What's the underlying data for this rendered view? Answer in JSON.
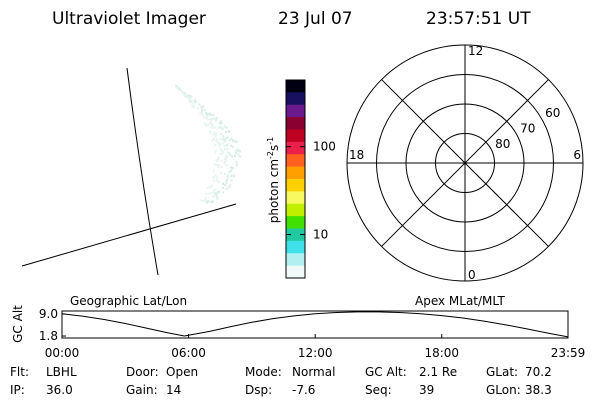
{
  "header": {
    "instrument": "Ultraviolet Imager",
    "date": "23 Jul 07",
    "time": "23:57:51 UT"
  },
  "colorbar": {
    "label": {
      "base": "photon cm",
      "exp1": "-2",
      "mid": "s",
      "exp2": "-1"
    },
    "log_scale": true,
    "lim": [
      3.2,
      575
    ],
    "ticks": [
      10,
      100
    ],
    "colors": [
      "#000010",
      "#1a1060",
      "#6a1a8a",
      "#8a0030",
      "#c00020",
      "#e8204a",
      "#ff6020",
      "#ffa000",
      "#ffd000",
      "#f8f860",
      "#c0f000",
      "#40e000",
      "#20c8a0",
      "#40e0e8",
      "#b0f0f0",
      "#f0f8f8"
    ]
  },
  "polar": {
    "lat_lim": [
      50,
      90
    ],
    "rings": [
      80,
      70,
      60
    ],
    "mlt_labels": [
      12,
      18,
      6,
      0
    ]
  },
  "chart_data": {
    "type": "line",
    "ylabel": "GC Alt",
    "left_label": "Geographic Lat/Lon",
    "right_label": "Apex MLat/MLT",
    "x": [
      0,
      1,
      2,
      3,
      4,
      5,
      5.8,
      7,
      8,
      9,
      10,
      11,
      12,
      13,
      14,
      15,
      16,
      17,
      18,
      19,
      20,
      21,
      22,
      23,
      23.983
    ],
    "values": [
      9.1,
      8.3,
      7.2,
      5.9,
      4.4,
      2.9,
      1.8,
      3.3,
      4.9,
      6.3,
      7.5,
      8.4,
      9.1,
      9.5,
      9.7,
      9.7,
      9.5,
      9.1,
      8.5,
      7.7,
      6.7,
      5.5,
      4.2,
      2.8,
      1.5
    ],
    "xlim": [
      0,
      23.983
    ],
    "ylim": [
      1.15,
      10.0
    ],
    "xticks": [
      {
        "value": 0,
        "label": "00:00"
      },
      {
        "value": 6,
        "label": "06:00"
      },
      {
        "value": 12,
        "label": "12:00"
      },
      {
        "value": 18,
        "label": "18:00"
      },
      {
        "value": 23.983,
        "label": "23:59"
      }
    ],
    "yticks": [
      1.8,
      {
        "value": 9,
        "label": "9.0"
      }
    ]
  },
  "footer": [
    [
      [
        "Flt:",
        "LBHL"
      ],
      [
        "Door:",
        "Open"
      ],
      [
        "Mode:",
        "Normal"
      ],
      [
        "GC Alt:",
        "2.1 Re"
      ],
      [
        "GLat:",
        "70.2"
      ]
    ],
    [
      [
        "IP:",
        "36.0"
      ],
      [
        "Gain:",
        "14"
      ],
      [
        "Dsp:",
        "-7.6"
      ],
      [
        "Seq:",
        "39"
      ],
      [
        "GLon:",
        "38.3"
      ]
    ]
  ]
}
